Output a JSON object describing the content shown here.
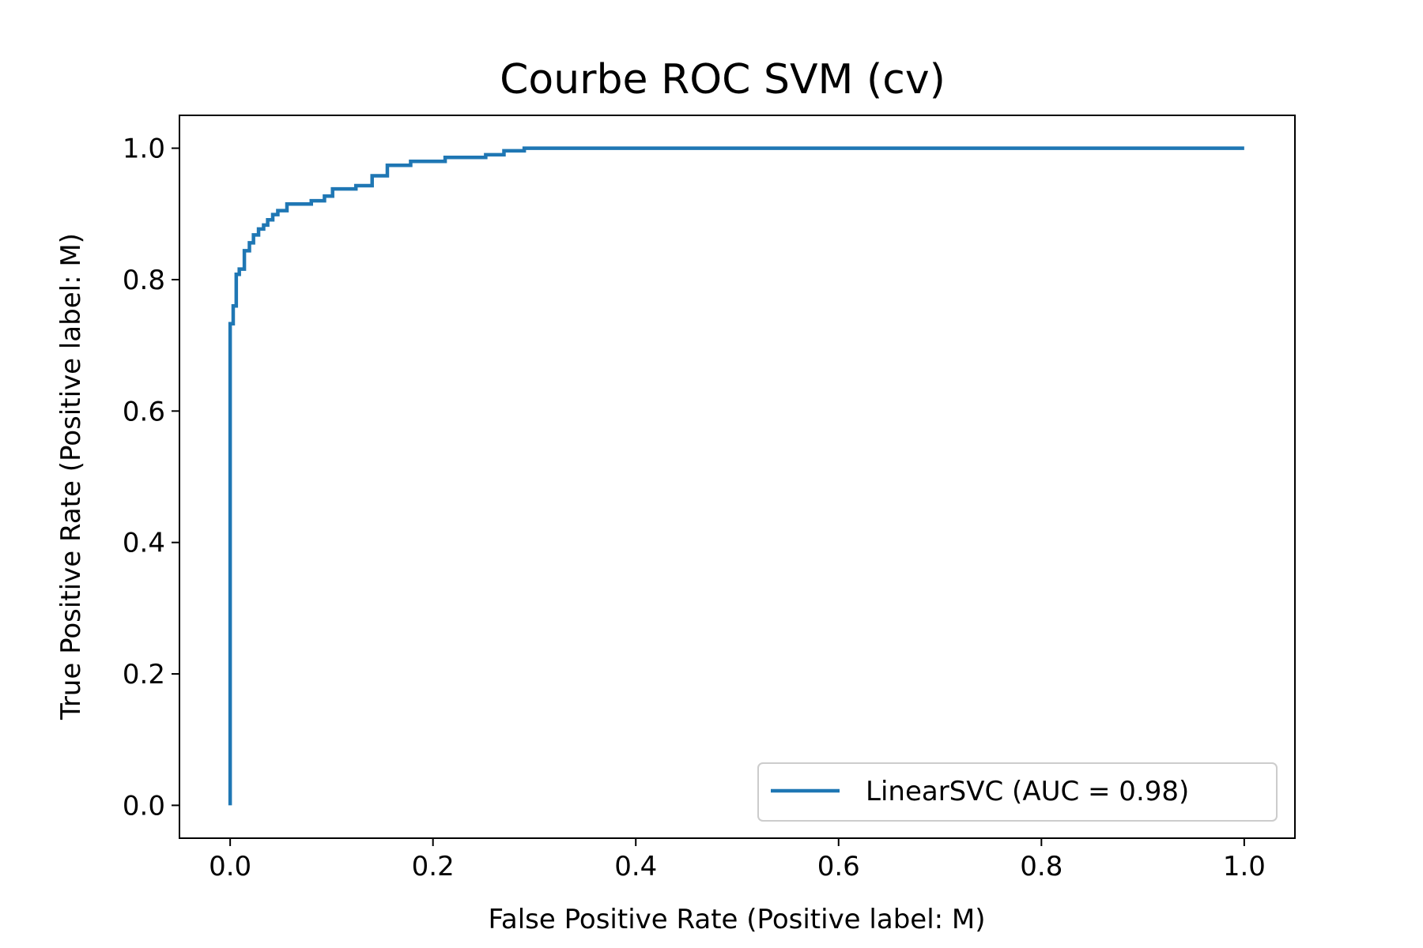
{
  "chart_data": {
    "type": "line",
    "title": "Courbe ROC SVM (cv)",
    "xlabel": "False Positive Rate (Positive label: M)",
    "ylabel": "True Positive Rate (Positive label: M)",
    "xlim": [
      -0.05,
      1.05
    ],
    "ylim": [
      -0.05,
      1.05
    ],
    "xticks": [
      "0.0",
      "0.2",
      "0.4",
      "0.6",
      "0.8",
      "1.0"
    ],
    "yticks": [
      "0.0",
      "0.2",
      "0.4",
      "0.6",
      "0.8",
      "1.0"
    ],
    "grid": false,
    "legend_position": "lower right",
    "series": [
      {
        "name": "LinearSVC (AUC = 0.98)",
        "color": "#1f77b4",
        "x": [
          0.0,
          0.0,
          0.003,
          0.003,
          0.006,
          0.006,
          0.009,
          0.009,
          0.014,
          0.014,
          0.019,
          0.019,
          0.023,
          0.023,
          0.028,
          0.028,
          0.033,
          0.033,
          0.037,
          0.037,
          0.042,
          0.042,
          0.047,
          0.047,
          0.056,
          0.056,
          0.08,
          0.08,
          0.093,
          0.093,
          0.101,
          0.101,
          0.124,
          0.124,
          0.14,
          0.14,
          0.155,
          0.155,
          0.178,
          0.178,
          0.212,
          0.212,
          0.252,
          0.252,
          0.27,
          0.27,
          0.29,
          0.29,
          1.0
        ],
        "y": [
          0.0,
          0.733,
          0.733,
          0.76,
          0.76,
          0.808,
          0.808,
          0.816,
          0.816,
          0.844,
          0.844,
          0.856,
          0.856,
          0.868,
          0.868,
          0.877,
          0.877,
          0.883,
          0.883,
          0.891,
          0.891,
          0.899,
          0.899,
          0.905,
          0.905,
          0.915,
          0.915,
          0.92,
          0.92,
          0.927,
          0.927,
          0.938,
          0.938,
          0.943,
          0.943,
          0.958,
          0.958,
          0.974,
          0.974,
          0.98,
          0.98,
          0.986,
          0.986,
          0.99,
          0.99,
          0.996,
          0.996,
          1.0,
          1.0
        ]
      }
    ]
  }
}
